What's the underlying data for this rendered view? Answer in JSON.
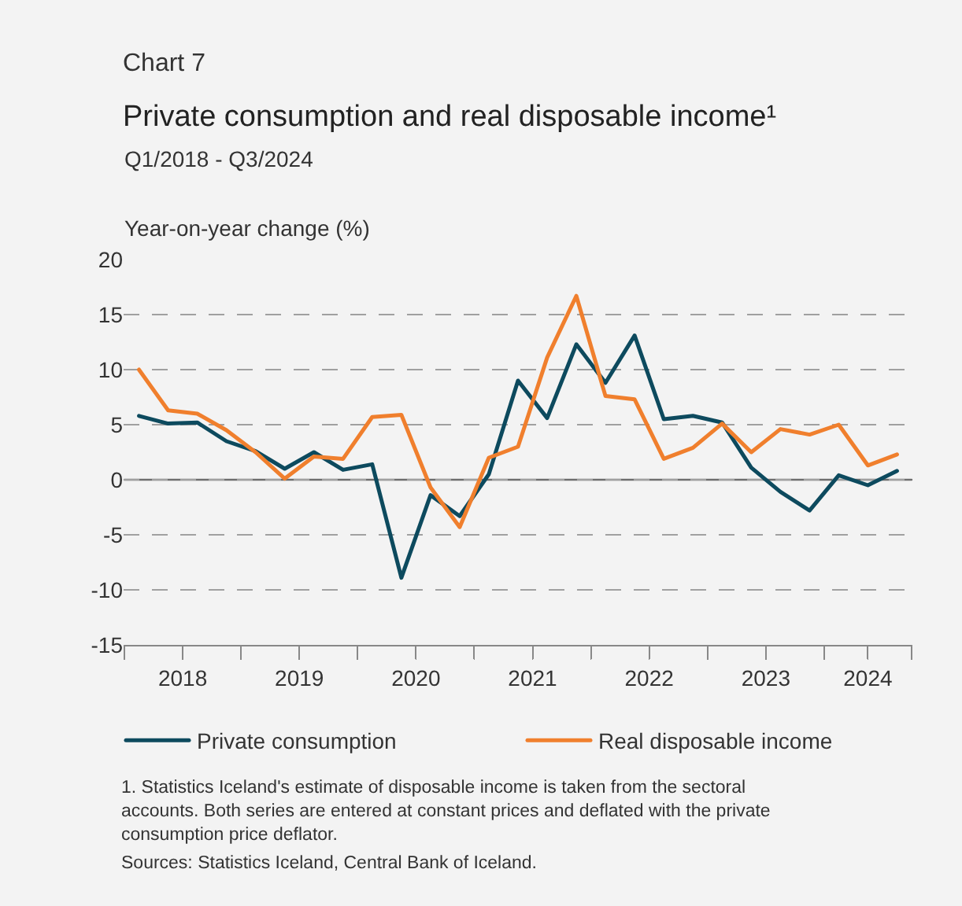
{
  "chart_data": {
    "type": "line",
    "title": "Private consumption and real disposable income¹",
    "subtitle": "Q1/2018 - Q3/2024",
    "ylabel": "Year-on-year change (%)",
    "annotations": [
      "Chart 7",
      "1. Statistics Iceland's estimate of disposable income is taken from the sectoral accounts. Both series are entered at constant prices and deflated with the private consumption price deflator.",
      "Sources: Statistics Iceland, Central Bank of Iceland."
    ],
    "x": [
      2018.125,
      2018.375,
      2018.625,
      2018.875,
      2019.125,
      2019.375,
      2019.625,
      2019.875,
      2020.125,
      2020.375,
      2020.625,
      2020.875,
      2021.125,
      2021.375,
      2021.625,
      2021.875,
      2022.125,
      2022.375,
      2022.625,
      2022.875,
      2023.125,
      2023.375,
      2023.625,
      2023.875,
      2024.125,
      2024.375,
      2024.625
    ],
    "series": [
      {
        "name": "Private consumption",
        "color": "#0d4a5e",
        "values": [
          5.8,
          5.1,
          5.2,
          3.5,
          2.6,
          1.0,
          2.5,
          0.9,
          1.4,
          -8.9,
          -1.4,
          -3.3,
          0.5,
          9.0,
          5.6,
          12.3,
          8.8,
          13.1,
          5.5,
          5.8,
          5.2,
          1.1,
          -1.1,
          -2.8,
          0.4,
          -0.5,
          0.8
        ]
      },
      {
        "name": "Real disposable income",
        "color": "#f07f2d",
        "values": [
          10.0,
          6.3,
          6.0,
          4.5,
          2.5,
          0.1,
          2.1,
          1.9,
          5.7,
          5.9,
          -0.7,
          -4.3,
          2.0,
          3.0,
          11.1,
          16.7,
          7.6,
          7.3,
          1.9,
          2.9,
          5.1,
          2.5,
          4.6,
          4.1,
          5.0,
          1.3,
          2.3
        ]
      }
    ],
    "xlim": [
      2018,
      2024.75
    ],
    "xticks": [
      {
        "value": 2018,
        "label": null
      },
      {
        "value": 2018.5,
        "label": "2018"
      },
      {
        "value": 2019,
        "label": null
      },
      {
        "value": 2019.5,
        "label": "2019"
      },
      {
        "value": 2020,
        "label": null
      },
      {
        "value": 2020.5,
        "label": "2020"
      },
      {
        "value": 2021,
        "label": null
      },
      {
        "value": 2021.5,
        "label": "2021"
      },
      {
        "value": 2022,
        "label": null
      },
      {
        "value": 2022.5,
        "label": "2022"
      },
      {
        "value": 2023,
        "label": null
      },
      {
        "value": 2023.5,
        "label": "2023"
      },
      {
        "value": 2024,
        "label": null
      },
      {
        "value": 2024.375,
        "label": "2024"
      },
      {
        "value": 2024.75,
        "label": null
      }
    ],
    "ylim": [
      -15,
      20
    ],
    "yticks": [
      -15,
      -10,
      -5,
      0,
      5,
      10,
      15,
      20
    ],
    "ref_lines": [
      {
        "axis": "y",
        "value": 0,
        "color": "#6e6e6e",
        "line_style": "solid"
      }
    ],
    "grid": "y",
    "legend": "bottom",
    "marker": "none",
    "line_style": "solid"
  }
}
